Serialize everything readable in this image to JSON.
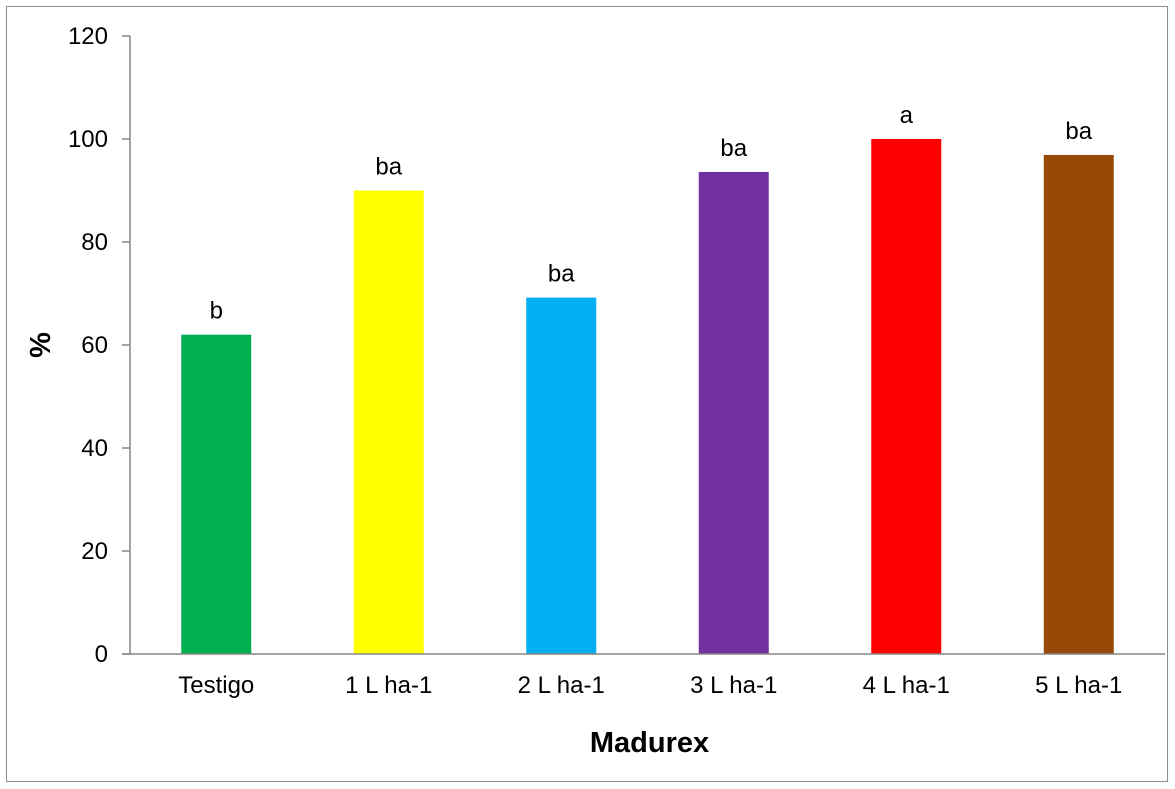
{
  "chart_data": {
    "type": "bar",
    "title": "",
    "xlabel": "Madurex",
    "ylabel": "%",
    "ylim": [
      0,
      120
    ],
    "yticks": [
      0,
      20,
      40,
      60,
      80,
      100,
      120
    ],
    "categories": [
      "Testigo",
      "1 L ha-1",
      "2 L ha-1",
      "3 L ha-1",
      "4 L ha-1",
      "5 L ha-1"
    ],
    "values": [
      62,
      90,
      69.2,
      93.6,
      100,
      96.9
    ],
    "bar_labels": [
      "b",
      "ba",
      "ba",
      "ba",
      "a",
      "ba"
    ],
    "colors": [
      "#00B050",
      "#FFFF00",
      "#00B0F0",
      "#7030A0",
      "#FF0000",
      "#984807"
    ],
    "grid": false,
    "legend": "none"
  }
}
